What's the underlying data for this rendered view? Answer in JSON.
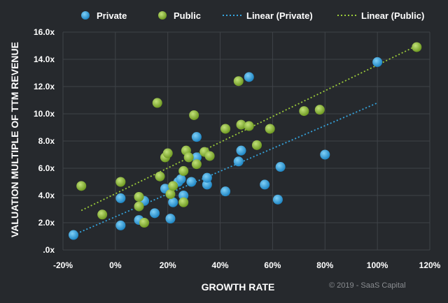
{
  "chart_data": {
    "type": "scatter",
    "title": "",
    "xlabel": "GROWTH RATE",
    "ylabel": "VALUATION MULTIPLE OF TTM REVENUE",
    "xlim": [
      -20,
      120
    ],
    "ylim": [
      0,
      16
    ],
    "x_ticks": [
      -20,
      0,
      20,
      40,
      60,
      80,
      100,
      120
    ],
    "x_tick_labels": [
      "-20%",
      "0%",
      "20%",
      "40%",
      "60%",
      "80%",
      "100%",
      "120%"
    ],
    "y_ticks": [
      0,
      2,
      4,
      6,
      8,
      10,
      12,
      14,
      16
    ],
    "y_tick_labels": [
      ".0x",
      "2.0x",
      "4.0x",
      "6.0x",
      "8.0x",
      "10.0x",
      "12.0x",
      "14.0x",
      "16.0x"
    ],
    "grid": true,
    "legend_position": "top",
    "series": [
      {
        "name": "Private",
        "kind": "scatter",
        "color": "#35a6e0",
        "points": [
          [
            -16,
            1.1
          ],
          [
            2,
            1.8
          ],
          [
            2,
            3.8
          ],
          [
            9,
            2.2
          ],
          [
            11,
            3.6
          ],
          [
            15,
            2.7
          ],
          [
            19,
            4.5
          ],
          [
            21,
            2.3
          ],
          [
            22,
            3.5
          ],
          [
            24,
            5.0
          ],
          [
            25,
            5.2
          ],
          [
            26,
            4.0
          ],
          [
            29,
            5.0
          ],
          [
            31,
            8.3
          ],
          [
            31,
            6.8
          ],
          [
            35,
            4.8
          ],
          [
            35,
            5.3
          ],
          [
            42,
            4.3
          ],
          [
            47,
            6.5
          ],
          [
            48,
            7.3
          ],
          [
            51,
            12.7
          ],
          [
            57,
            4.8
          ],
          [
            62,
            3.7
          ],
          [
            63,
            6.1
          ],
          [
            80,
            7.0
          ],
          [
            100,
            13.8
          ]
        ]
      },
      {
        "name": "Public",
        "kind": "scatter",
        "color": "#8cb83a",
        "points": [
          [
            -13,
            4.7
          ],
          [
            -5,
            2.6
          ],
          [
            2,
            5.0
          ],
          [
            9,
            3.9
          ],
          [
            9,
            3.2
          ],
          [
            11,
            2.0
          ],
          [
            16,
            10.8
          ],
          [
            17,
            5.4
          ],
          [
            19,
            6.8
          ],
          [
            20,
            7.1
          ],
          [
            21,
            4.1
          ],
          [
            22,
            4.7
          ],
          [
            26,
            3.5
          ],
          [
            26,
            5.8
          ],
          [
            27,
            7.3
          ],
          [
            28,
            6.8
          ],
          [
            30,
            9.9
          ],
          [
            31,
            6.3
          ],
          [
            34,
            7.2
          ],
          [
            36,
            6.9
          ],
          [
            42,
            8.9
          ],
          [
            47,
            12.4
          ],
          [
            48,
            9.2
          ],
          [
            51,
            9.1
          ],
          [
            54,
            7.7
          ],
          [
            59,
            8.9
          ],
          [
            72,
            10.2
          ],
          [
            78,
            10.3
          ],
          [
            115,
            14.9
          ]
        ]
      },
      {
        "name": "Linear (Private)",
        "kind": "trendline",
        "color": "#35a6e0",
        "points": [
          [
            -16,
            1.1
          ],
          [
            100,
            10.8
          ]
        ]
      },
      {
        "name": "Linear (Public)",
        "kind": "trendline",
        "color": "#9ccc3a",
        "points": [
          [
            -13,
            2.9
          ],
          [
            115,
            15.0
          ]
        ]
      }
    ],
    "credit": "© 2019 - SaaS Capital"
  }
}
